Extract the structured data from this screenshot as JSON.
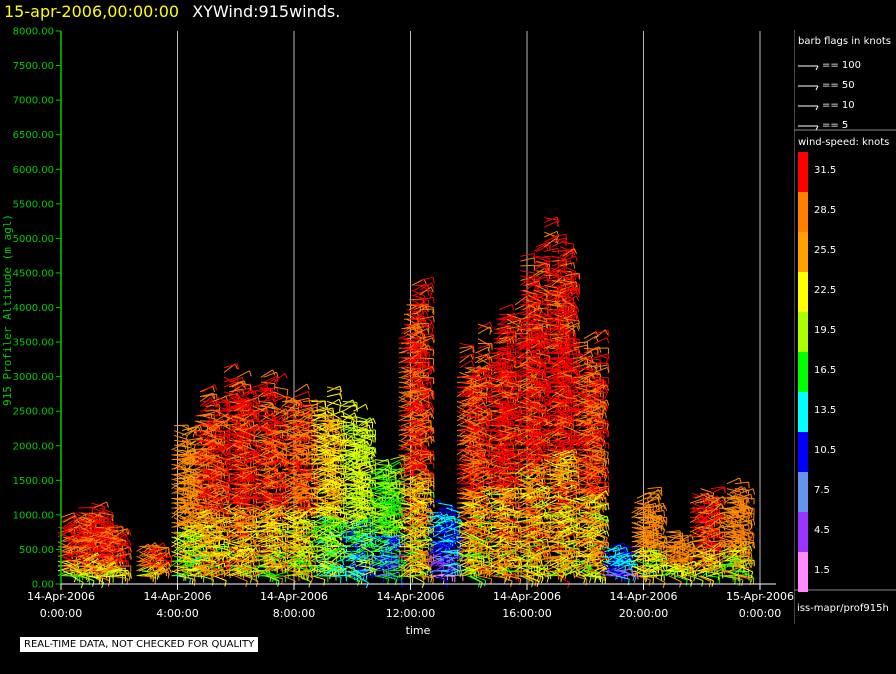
{
  "header": {
    "date": "15-apr-2006,00:00:00",
    "product": "XYWind:915winds."
  },
  "footer": {
    "quality_note": "REAL-TIME DATA, NOT CHECKED FOR QUALITY",
    "source": "iss-mapr/prof915h"
  },
  "colors": {
    "axis": "#00cc00",
    "grid": "#bbbbbb",
    "title_date": "#ffff00"
  },
  "barb_legend": {
    "title": "barb flags in knots",
    "items": [
      "== 100",
      "== 50",
      "== 10",
      "== 5"
    ]
  },
  "speed_legend": {
    "title": "wind-speed: knots",
    "items": [
      {
        "label": "31.5",
        "color": "#ff0000"
      },
      {
        "label": "28.5",
        "color": "#ff8000"
      },
      {
        "label": "25.5",
        "color": "#ffa000"
      },
      {
        "label": "22.5",
        "color": "#ffff00"
      },
      {
        "label": "19.5",
        "color": "#aaff00"
      },
      {
        "label": "16.5",
        "color": "#00ff00"
      },
      {
        "label": "13.5",
        "color": "#00ffff"
      },
      {
        "label": "10.5",
        "color": "#0000ff"
      },
      {
        "label": "7.5",
        "color": "#6495ed"
      },
      {
        "label": "4.5",
        "color": "#9933ff"
      },
      {
        "label": "1.5",
        "color": "#ff88ff"
      }
    ]
  },
  "chart_data": {
    "type": "scatter",
    "title": "15-apr-2006,00:00:00  XYWind:915winds.",
    "xlabel": "time",
    "ylabel": "915 Profiler Altitude (m agl)",
    "ylim": [
      0,
      8000
    ],
    "xlim_hours": [
      0,
      24
    ],
    "yticks": [
      "0.00",
      "500.00",
      "1000.00",
      "1500.00",
      "2000.00",
      "2500.00",
      "3000.00",
      "3500.00",
      "4000.00",
      "4500.00",
      "5000.00",
      "5500.00",
      "6000.00",
      "6500.00",
      "7000.00",
      "7500.00",
      "8000.00"
    ],
    "xticks": [
      {
        "date": "14-Apr-2006",
        "time": "0:00:00"
      },
      {
        "date": "14-Apr-2006",
        "time": "4:00:00"
      },
      {
        "date": "14-Apr-2006",
        "time": "8:00:00"
      },
      {
        "date": "14-Apr-2006",
        "time": "12:00:00"
      },
      {
        "date": "14-Apr-2006",
        "time": "16:00:00"
      },
      {
        "date": "14-Apr-2006",
        "time": "20:00:00"
      },
      {
        "date": "15-Apr-2006",
        "time": "0:00:00"
      }
    ],
    "grid": "vertical",
    "profiles": [
      {
        "hour": 0.3,
        "top": 1100,
        "speed": 30
      },
      {
        "hour": 1.0,
        "top": 1200,
        "speed": 31
      },
      {
        "hour": 1.6,
        "top": 900,
        "speed": 30
      },
      {
        "hour": 3.0,
        "top": 600,
        "speed": 29
      },
      {
        "hour": 4.2,
        "top": 2400,
        "speed": 27
      },
      {
        "hour": 5.0,
        "top": 3000,
        "speed": 30
      },
      {
        "hour": 6.0,
        "top": 3200,
        "speed": 31
      },
      {
        "hour": 7.0,
        "top": 3100,
        "speed": 30
      },
      {
        "hour": 8.0,
        "top": 3000,
        "speed": 29
      },
      {
        "hour": 9.0,
        "top": 2900,
        "speed": 24
      },
      {
        "hour": 10.0,
        "top": 2700,
        "speed": 21
      },
      {
        "hour": 11.0,
        "top": 2000,
        "speed": 18
      },
      {
        "hour": 12.0,
        "top": 4500,
        "speed": 30
      },
      {
        "hour": 13.0,
        "top": 1200,
        "speed": 12
      },
      {
        "hour": 14.0,
        "top": 3900,
        "speed": 30
      },
      {
        "hour": 15.0,
        "top": 4100,
        "speed": 31
      },
      {
        "hour": 16.0,
        "top": 4900,
        "speed": 31
      },
      {
        "hour": 17.0,
        "top": 5400,
        "speed": 31
      },
      {
        "hour": 18.0,
        "top": 3700,
        "speed": 30
      },
      {
        "hour": 19.0,
        "top": 600,
        "speed": 12
      },
      {
        "hour": 20.0,
        "top": 1400,
        "speed": 27
      },
      {
        "hour": 21.0,
        "top": 800,
        "speed": 28
      },
      {
        "hour": 22.0,
        "top": 1400,
        "speed": 30
      },
      {
        "hour": 23.0,
        "top": 1500,
        "speed": 28
      }
    ]
  }
}
